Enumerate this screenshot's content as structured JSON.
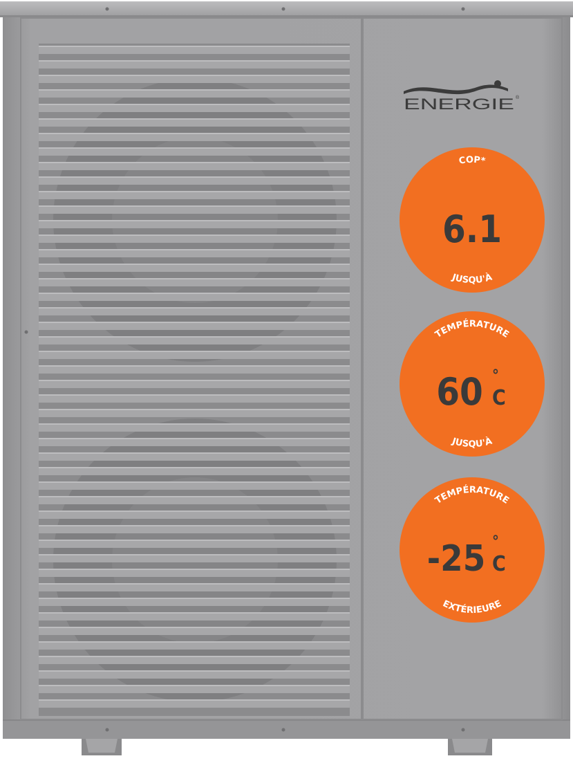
{
  "brand": {
    "name": "ENERGIE",
    "registered": "®"
  },
  "colors": {
    "casing": "#9d9d9f",
    "badge": "#f26f21",
    "badge_value": "#3a3a3a",
    "badge_text": "#ffffff"
  },
  "badges": [
    {
      "top": "COP*",
      "value": "6.1",
      "unit": "",
      "degree": "",
      "bottom": "JUSQU'À"
    },
    {
      "top": "TEMPÉRATURE",
      "value": "60",
      "unit": "C",
      "degree": "°",
      "bottom": "JUSQU'À"
    },
    {
      "top": "TEMPÉRATURE",
      "value": "-25",
      "unit": "C",
      "degree": "°",
      "bottom": "EXTÉRIEURE"
    }
  ]
}
